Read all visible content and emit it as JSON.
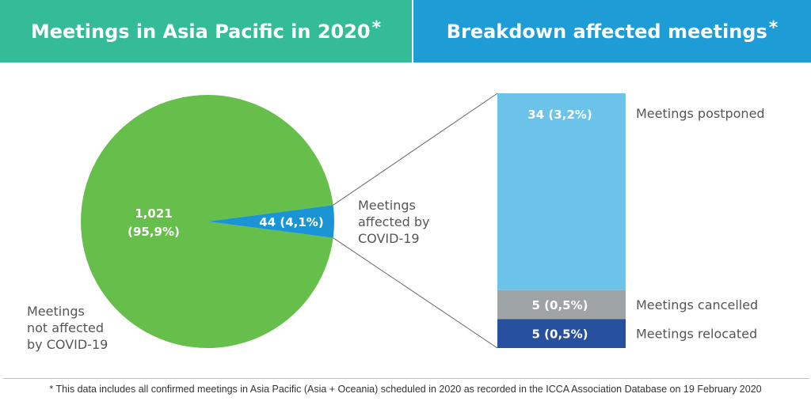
{
  "header_left": {
    "title": "Meetings in Asia Pacific in 2020",
    "mark": "*"
  },
  "header_right": {
    "title": "Breakdown affected meetings",
    "mark": "*"
  },
  "colors": {
    "header_left": "#34bc98",
    "header_right": "#1d9cd6",
    "not_affected": "#66bf4b",
    "affected": "#1a94d4",
    "postponed": "#6cc3ea",
    "cancelled": "#9ea3a6",
    "relocated": "#27509e"
  },
  "chart_data": [
    {
      "type": "pie",
      "slices": [
        {
          "value": 1021,
          "share": 95.9,
          "label_value": "1,021",
          "label_share": "(95,9%)",
          "caption": [
            "Meetings",
            "not affected",
            "by COVID-19"
          ]
        },
        {
          "value": 44,
          "share": 4.1,
          "label": "44 (4,1%)",
          "caption": [
            "Meetings",
            "affected by",
            "COVID-19"
          ]
        }
      ]
    },
    {
      "type": "bar",
      "stacked": true,
      "series": [
        {
          "name": "Meetings postponed",
          "value": 34,
          "share": 3.2,
          "label": "34 (3,2%)"
        },
        {
          "name": "Meetings cancelled",
          "value": 5,
          "share": 0.5,
          "label": "5 (0,5%)"
        },
        {
          "name": "Meetings relocated",
          "value": 5,
          "share": 0.5,
          "label": "5 (0,5%)"
        }
      ]
    }
  ],
  "footnote": "* This data includes all confirmed meetings in Asia Pacific (Asia + Oceania) scheduled in 2020 as recorded in the ICCA Association Database on 19 February 2020"
}
